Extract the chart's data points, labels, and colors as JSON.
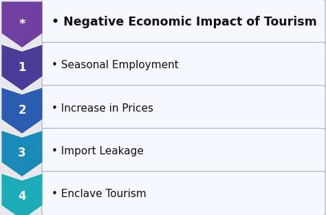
{
  "rows": [
    {
      "label": "*",
      "text": "Negative Economic Impact of Tourism",
      "chevron_top": "#9B6BC0",
      "chevron_bot": "#7040A0",
      "bold": true,
      "fontsize": 12.5
    },
    {
      "label": "1",
      "text": "Seasonal Employment",
      "chevron_top": "#6B5CB8",
      "chevron_bot": "#4B3C98",
      "bold": false,
      "fontsize": 11.0
    },
    {
      "label": "2",
      "text": "Increase in Prices",
      "chevron_top": "#4B7CD0",
      "chevron_bot": "#2B5CB0",
      "bold": false,
      "fontsize": 11.0
    },
    {
      "label": "3",
      "text": "Import Leakage",
      "chevron_top": "#3BAAD8",
      "chevron_bot": "#1B8AB8",
      "bold": false,
      "fontsize": 11.0
    },
    {
      "label": "4",
      "text": "Enclave Tourism",
      "chevron_top": "#3BCCD8",
      "chevron_bot": "#1BACB8",
      "bold": false,
      "fontsize": 11.0
    }
  ],
  "bg_color": "#E8E8EC",
  "box_bg": "#F8F8FF",
  "box_border": "#AAAACC",
  "text_color": "#111111",
  "label_color": "#FFFFFF",
  "bullet": "•",
  "fig_w": 4.74,
  "fig_h": 3.12,
  "dpi": 100
}
